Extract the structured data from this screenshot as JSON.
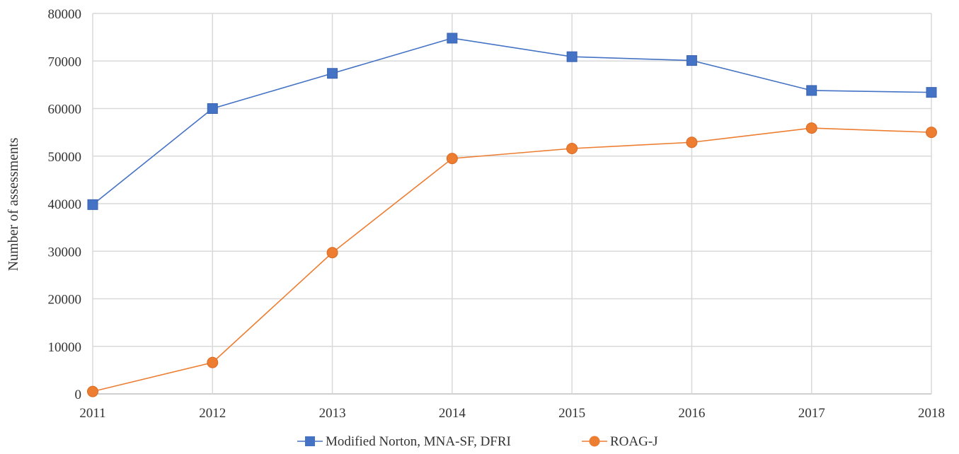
{
  "chart_data": {
    "type": "line",
    "title": "",
    "xlabel": "",
    "ylabel": "Number of assessments",
    "categories": [
      "2011",
      "2012",
      "2013",
      "2014",
      "2015",
      "2016",
      "2017",
      "2018"
    ],
    "ylim": [
      0,
      80000
    ],
    "yticks": [
      "0",
      "10000",
      "20000",
      "30000",
      "40000",
      "50000",
      "60000",
      "70000",
      "80000"
    ],
    "grid": true,
    "legend_position": "bottom",
    "series": [
      {
        "name": "Modified Norton, MNA-SF, DFRI",
        "color": "#4472c4",
        "marker": "square",
        "values": [
          39800,
          60000,
          67400,
          74800,
          70900,
          70100,
          63800,
          63400
        ]
      },
      {
        "name": "ROAG-J",
        "color": "#ed7d31",
        "marker": "circle",
        "values": [
          500,
          6600,
          29700,
          49500,
          51600,
          52900,
          55900,
          55000
        ]
      }
    ]
  }
}
